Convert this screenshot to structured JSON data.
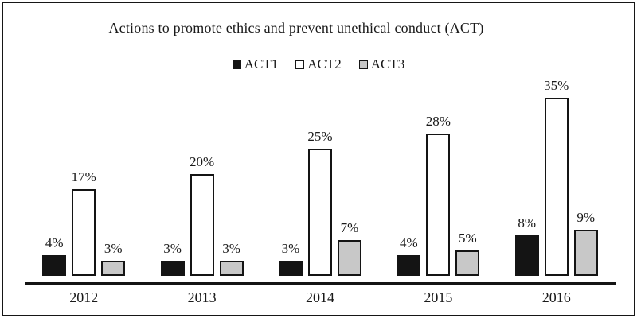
{
  "chart_data": {
    "type": "bar",
    "title": "Actions to promote ethics and prevent unethical conduct (ACT)",
    "categories": [
      "2012",
      "2013",
      "2014",
      "2015",
      "2016"
    ],
    "series": [
      {
        "name": "ACT1",
        "color": "#141414",
        "values": [
          4,
          3,
          3,
          4,
          8
        ]
      },
      {
        "name": "ACT2",
        "color": "#ffffff",
        "values": [
          17,
          20,
          25,
          28,
          35
        ]
      },
      {
        "name": "ACT3",
        "color": "#c8c8c8",
        "values": [
          3,
          3,
          7,
          5,
          9
        ]
      }
    ],
    "value_suffix": "%",
    "xlabel": "",
    "ylabel": "",
    "ylim": [
      0,
      40
    ],
    "grid": false,
    "legend_position": "top",
    "data_labels": true
  }
}
